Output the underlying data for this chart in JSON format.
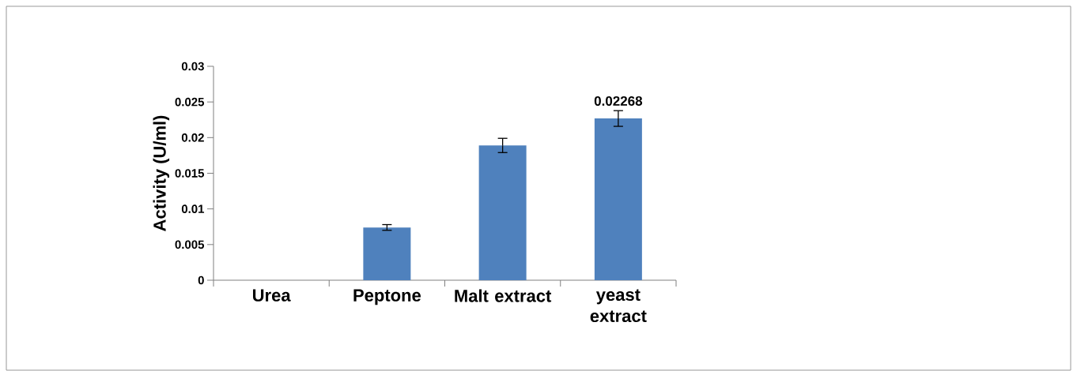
{
  "chart_data": {
    "type": "bar",
    "ylabel": "Activity  (U/ml)",
    "categories": [
      "Urea",
      "Peptone",
      "Malt extract",
      "yeast extract"
    ],
    "values": [
      0,
      0.0074,
      0.0189,
      0.02268
    ],
    "errors": [
      null,
      0.0004,
      0.001,
      0.0011
    ],
    "value_labels": [
      null,
      null,
      null,
      "0.02268"
    ],
    "color": "#4f81bd",
    "ylim": [
      0,
      0.03
    ],
    "yticks": [
      0,
      0.005,
      0.01,
      0.015,
      0.02,
      0.025,
      0.03
    ],
    "grid": false
  }
}
